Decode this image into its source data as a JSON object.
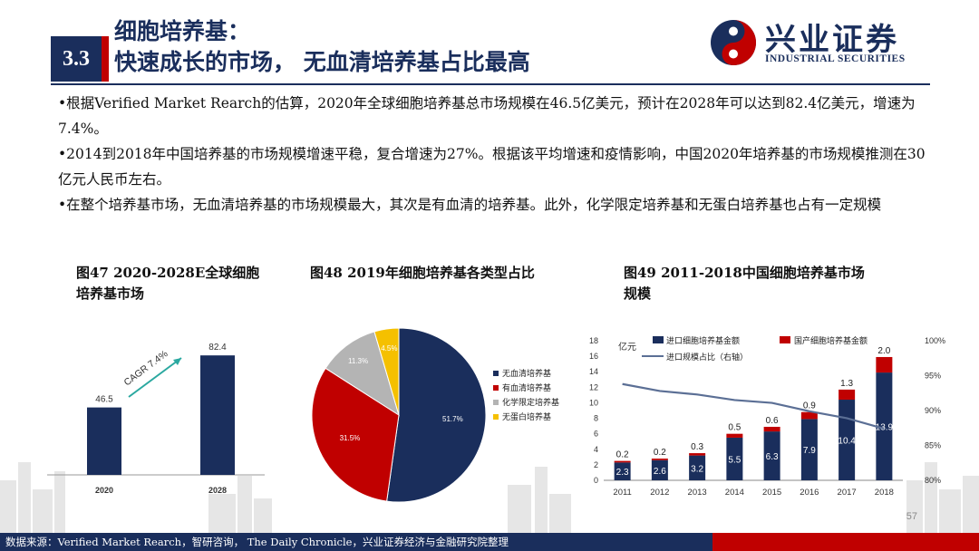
{
  "header": {
    "section_number": "3.3",
    "title_line1": "细胞培养基：",
    "title_line2": "快速成长的市场， 无血清培养基占比最高",
    "logo_cn": "兴业证券",
    "logo_en": "INDUSTRIAL SECURITIES",
    "colors": {
      "navy": "#1a2e5c",
      "red": "#c00000"
    }
  },
  "bullets": [
    "•根据Verified Market Rearch的估算，2020年全球细胞培养基总市场规模在46.5亿美元，预计在2028年可以达到82.4亿美元，增速为7.4%。",
    "•2014到2018年中国培养基的市场规模增速平稳，复合增速为27%。根据该平均增速和疫情影响，中国2020年培养基的市场规模推测在30亿元人民币左右。",
    "•在整个培养基市场，无血清培养基的市场规模最大，其次是有血清的培养基。此外，化学限定培养基和无蛋白培养基也占有一定规模"
  ],
  "figures": {
    "fig47_caption_line1": "图47 2020-2028E全球细胞",
    "fig47_caption_line2": "培养基市场",
    "fig48_caption": "图48 2019年细胞培养基各类型占比",
    "fig49_caption_line1": "图49 2011-2018中国细胞培养基市场",
    "fig49_caption_line2": "规模"
  },
  "chart_data": [
    {
      "type": "bar",
      "categories": [
        "2020",
        "2028"
      ],
      "values": [
        46.5,
        82.4
      ],
      "value_labels": [
        "46.5",
        "82.4"
      ],
      "annotation": "CAGR 7.4%",
      "color": "#1a2e5c"
    },
    {
      "type": "pie",
      "labels": [
        "无血清培养基",
        "有血清培养基",
        "化学限定培养基",
        "无蛋白培养基"
      ],
      "values": [
        51.7,
        31.5,
        11.3,
        4.5
      ],
      "value_labels": [
        "51.7%",
        "31.5%",
        "11.3%",
        "4.5%"
      ],
      "colors": [
        "#1a2e5c",
        "#c00000",
        "#b4b4b4",
        "#f5c000"
      ],
      "legend_position": "right"
    },
    {
      "type": "bar",
      "categories": [
        "2011",
        "2012",
        "2013",
        "2014",
        "2015",
        "2016",
        "2017",
        "2018"
      ],
      "ylabel": "亿元",
      "ylim": [
        0,
        18
      ],
      "yticks": [
        "0",
        "2",
        "4",
        "6",
        "8",
        "10",
        "12",
        "14",
        "16",
        "18"
      ],
      "y2lim": [
        80,
        100
      ],
      "y2ticks": [
        "80%",
        "85%",
        "90%",
        "95%",
        "100%"
      ],
      "series": [
        {
          "name": "进口细胞培养基金额",
          "values": [
            2.3,
            2.6,
            3.2,
            5.5,
            6.3,
            7.9,
            10.4,
            13.9
          ],
          "color": "#1a2e5c"
        },
        {
          "name": "国产细胞培养基金额",
          "values": [
            0.2,
            0.2,
            0.3,
            0.5,
            0.6,
            0.9,
            1.3,
            2.0
          ],
          "color": "#c00000"
        },
        {
          "name": "进口规模占比（右轴）",
          "type": "line",
          "values": [
            93.8,
            92.8,
            92.3,
            91.5,
            91.1,
            89.9,
            88.9,
            87.4
          ],
          "color": "#5b6f95"
        }
      ],
      "value_labels_import": [
        "2.3",
        "2.6",
        "3.2",
        "5.5",
        "6.3",
        "7.9",
        "10.4",
        "13.9"
      ],
      "value_labels_domestic": [
        "0.2",
        "0.2",
        "0.3",
        "0.5",
        "0.6",
        "0.9",
        "1.3",
        "2.0"
      ],
      "legend_position": "top"
    }
  ],
  "page_number": "57",
  "footer": {
    "source": "数据来源：Verified Market Rearch，智研咨询， The Daily Chronicle，兴业证券经济与金融研究院整理"
  }
}
